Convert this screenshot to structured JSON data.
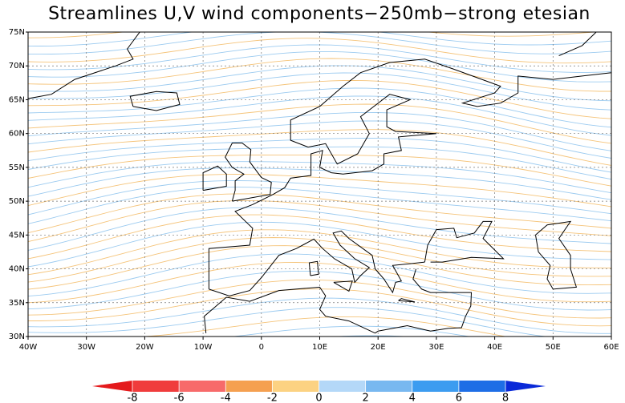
{
  "title": "Streamlines U,V wind components−250mb−strong etesian",
  "map": {
    "xlim": [
      -40,
      60
    ],
    "ylim": [
      30,
      75
    ],
    "xticks": [
      {
        "value": -40,
        "label": "40W"
      },
      {
        "value": -30,
        "label": "30W"
      },
      {
        "value": -20,
        "label": "20W"
      },
      {
        "value": -10,
        "label": "10W"
      },
      0,
      {
        "value": 10,
        "label": "10E"
      },
      {
        "value": 20,
        "label": "20E"
      },
      {
        "value": 30,
        "label": "30E"
      },
      {
        "value": 40,
        "label": "40E"
      },
      {
        "value": 50,
        "label": "50E"
      },
      {
        "value": 60,
        "label": "60E"
      }
    ],
    "yticks": [
      {
        "value": 30,
        "label": "30N"
      },
      {
        "value": 35,
        "label": "35N"
      },
      {
        "value": 40,
        "label": "40N"
      },
      {
        "value": 45,
        "label": "45N"
      },
      {
        "value": 50,
        "label": "50N"
      },
      {
        "value": 55,
        "label": "55N"
      },
      {
        "value": 60,
        "label": "60N"
      },
      {
        "value": 65,
        "label": "65N"
      },
      {
        "value": 70,
        "label": "70N"
      },
      {
        "value": 75,
        "label": "75N"
      }
    ],
    "grid": true
  },
  "colorbar": {
    "levels": [
      -8,
      -6,
      -4,
      -2,
      0,
      2,
      4,
      6,
      8
    ],
    "colors": [
      "#e41a1c",
      "#f03c3c",
      "#f76a6a",
      "#f5a050",
      "#fcd282",
      "#b4d8f8",
      "#78b8f0",
      "#3c9cf0",
      "#1e6ee6",
      "#0a2ad8"
    ]
  }
}
